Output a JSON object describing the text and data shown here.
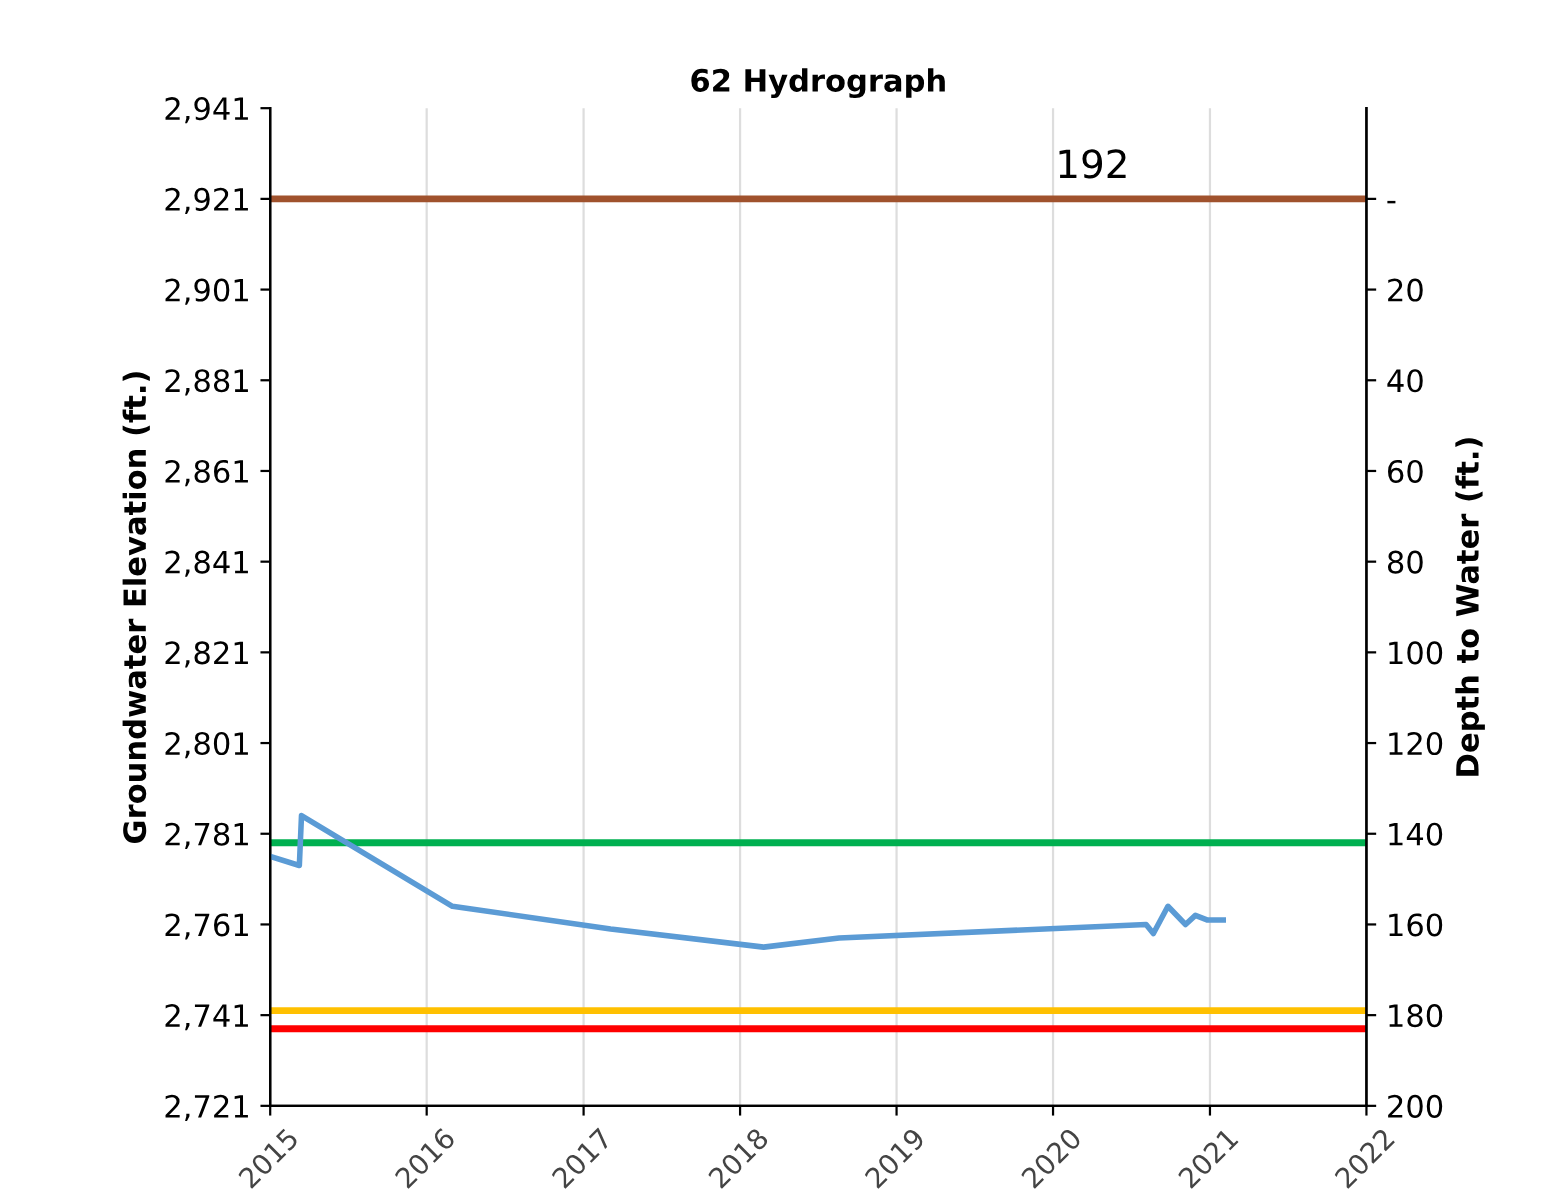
{
  "chart_data": {
    "type": "line",
    "title": "62 Hydrograph",
    "ylabel": "Groundwater Elevation (ft.)",
    "y2label": "Depth to Water (ft.)",
    "x": [
      "2015-01-01",
      "2015-03-10",
      "2015-03-15",
      "2016-03-01",
      "2017-03-05",
      "2018-02-25",
      "2018-08-20",
      "2020-08-05",
      "2020-08-22",
      "2020-09-25",
      "2020-11-05",
      "2020-11-28",
      "2020-12-25",
      "2021-02-01"
    ],
    "series": [
      {
        "color": "#5b9bd5",
        "values": [
          2776,
          2774,
          2785,
          2765,
          2760,
          2756,
          2758,
          2761,
          2759,
          2765,
          2761,
          2763,
          2762,
          2762
        ]
      }
    ],
    "xlim": [
      "2015",
      "2022"
    ],
    "xticks": [
      "2015",
      "2016",
      "2017",
      "2018",
      "2019",
      "2020",
      "2021",
      "2022"
    ],
    "ylim": [
      2721,
      2941
    ],
    "yticks": [
      {
        "value": 2721,
        "label": "2,721"
      },
      {
        "value": 2741,
        "label": "2,741"
      },
      {
        "value": 2761,
        "label": "2,761"
      },
      {
        "value": 2781,
        "label": "2,781"
      },
      {
        "value": 2801,
        "label": "2,801"
      },
      {
        "value": 2821,
        "label": "2,821"
      },
      {
        "value": 2841,
        "label": "2,841"
      },
      {
        "value": 2861,
        "label": "2,861"
      },
      {
        "value": 2881,
        "label": "2,881"
      },
      {
        "value": 2901,
        "label": "2,901"
      },
      {
        "value": 2921,
        "label": "2,921"
      },
      {
        "value": 2941,
        "label": "2,941"
      }
    ],
    "y2lim": [
      200,
      -20
    ],
    "y2ticks": [
      {
        "value": 0,
        "label": "-"
      },
      20,
      40,
      60,
      80,
      100,
      120,
      140,
      160,
      180,
      200
    ],
    "ref_lines": [
      {
        "axis": "y",
        "value": 2921,
        "color": "#a0522d"
      },
      {
        "axis": "y",
        "value": 2779,
        "color": "#00b050"
      },
      {
        "axis": "y",
        "value": 2742,
        "color": "#ffc000"
      },
      {
        "axis": "y",
        "value": 2738,
        "color": "#ff0000"
      }
    ],
    "annotations": [
      "192"
    ],
    "grid": "x",
    "legend": false,
    "marker": "none",
    "line_style": "solid"
  }
}
